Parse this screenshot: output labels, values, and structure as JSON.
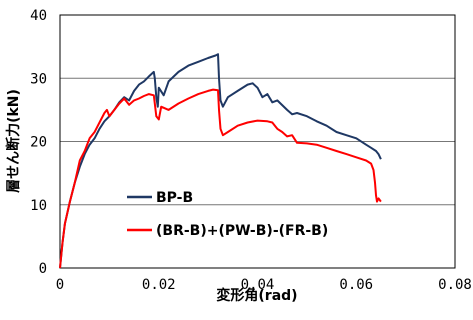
{
  "chart_data": {
    "type": "line",
    "xlabel": "変形角(rad)",
    "ylabel": "層せん断力(kN)",
    "xlim": [
      0,
      0.08
    ],
    "ylim": [
      0,
      40
    ],
    "xticks": [
      0,
      0.02,
      0.04,
      0.06,
      0.08
    ],
    "xtick_labels": [
      "0",
      "0.02",
      "0.04",
      "0.06",
      "0.08"
    ],
    "yticks": [
      0,
      10,
      20,
      30,
      40
    ],
    "ytick_labels": [
      "0",
      "10",
      "20",
      "30",
      "40"
    ],
    "grid": "horizontal",
    "legend_position": "bottom-left",
    "series": [
      {
        "name": "BP-B",
        "color": "#1f3864",
        "points": [
          [
            0,
            0
          ],
          [
            0.0005,
            4
          ],
          [
            0.001,
            7
          ],
          [
            0.002,
            10.5
          ],
          [
            0.003,
            13.5
          ],
          [
            0.004,
            16
          ],
          [
            0.005,
            18
          ],
          [
            0.006,
            19.5
          ],
          [
            0.007,
            20.5
          ],
          [
            0.008,
            22
          ],
          [
            0.009,
            23.2
          ],
          [
            0.01,
            24
          ],
          [
            0.011,
            25
          ],
          [
            0.012,
            26.2
          ],
          [
            0.013,
            27
          ],
          [
            0.014,
            26.5
          ],
          [
            0.015,
            28
          ],
          [
            0.016,
            29
          ],
          [
            0.017,
            29.5
          ],
          [
            0.018,
            30.3
          ],
          [
            0.019,
            31
          ],
          [
            0.0192,
            30
          ],
          [
            0.0195,
            27
          ],
          [
            0.0198,
            25.5
          ],
          [
            0.02,
            28.5
          ],
          [
            0.021,
            27.3
          ],
          [
            0.022,
            29.5
          ],
          [
            0.024,
            31
          ],
          [
            0.026,
            32
          ],
          [
            0.028,
            32.6
          ],
          [
            0.03,
            33.2
          ],
          [
            0.0315,
            33.6
          ],
          [
            0.032,
            33.8
          ],
          [
            0.0322,
            30
          ],
          [
            0.0325,
            26.5
          ],
          [
            0.033,
            25.5
          ],
          [
            0.034,
            27
          ],
          [
            0.036,
            28
          ],
          [
            0.038,
            29
          ],
          [
            0.039,
            29.2
          ],
          [
            0.04,
            28.5
          ],
          [
            0.041,
            27
          ],
          [
            0.042,
            27.5
          ],
          [
            0.043,
            26.2
          ],
          [
            0.044,
            26.5
          ],
          [
            0.046,
            25
          ],
          [
            0.047,
            24.3
          ],
          [
            0.048,
            24.5
          ],
          [
            0.05,
            24
          ],
          [
            0.052,
            23.2
          ],
          [
            0.054,
            22.5
          ],
          [
            0.056,
            21.5
          ],
          [
            0.058,
            21
          ],
          [
            0.06,
            20.5
          ],
          [
            0.062,
            19.5
          ],
          [
            0.063,
            19
          ],
          [
            0.064,
            18.5
          ],
          [
            0.0645,
            18
          ],
          [
            0.065,
            17.2
          ]
        ]
      },
      {
        "name": "(BR-B)+(PW-B)-(FR-B)",
        "color": "#ff0000",
        "points": [
          [
            0,
            0
          ],
          [
            0.0005,
            4
          ],
          [
            0.001,
            7
          ],
          [
            0.002,
            10.5
          ],
          [
            0.003,
            13.5
          ],
          [
            0.004,
            17
          ],
          [
            0.005,
            18.5
          ],
          [
            0.006,
            20.5
          ],
          [
            0.007,
            21.5
          ],
          [
            0.008,
            23
          ],
          [
            0.009,
            24.5
          ],
          [
            0.0095,
            25
          ],
          [
            0.01,
            24
          ],
          [
            0.011,
            25
          ],
          [
            0.012,
            26
          ],
          [
            0.013,
            26.8
          ],
          [
            0.014,
            25.8
          ],
          [
            0.015,
            26.5
          ],
          [
            0.016,
            26.8
          ],
          [
            0.017,
            27.2
          ],
          [
            0.018,
            27.5
          ],
          [
            0.019,
            27.3
          ],
          [
            0.0192,
            26
          ],
          [
            0.0195,
            24
          ],
          [
            0.02,
            23.5
          ],
          [
            0.0205,
            25.5
          ],
          [
            0.022,
            25
          ],
          [
            0.024,
            26
          ],
          [
            0.026,
            26.8
          ],
          [
            0.028,
            27.5
          ],
          [
            0.03,
            28
          ],
          [
            0.031,
            28.2
          ],
          [
            0.032,
            28.1
          ],
          [
            0.0322,
            25
          ],
          [
            0.0325,
            22
          ],
          [
            0.033,
            21
          ],
          [
            0.034,
            21.5
          ],
          [
            0.036,
            22.5
          ],
          [
            0.038,
            23
          ],
          [
            0.04,
            23.3
          ],
          [
            0.042,
            23.2
          ],
          [
            0.043,
            23
          ],
          [
            0.044,
            22
          ],
          [
            0.045,
            21.5
          ],
          [
            0.046,
            20.8
          ],
          [
            0.047,
            21
          ],
          [
            0.048,
            19.8
          ],
          [
            0.05,
            19.7
          ],
          [
            0.052,
            19.5
          ],
          [
            0.054,
            19
          ],
          [
            0.056,
            18.5
          ],
          [
            0.058,
            18
          ],
          [
            0.06,
            17.5
          ],
          [
            0.062,
            17
          ],
          [
            0.063,
            16.5
          ],
          [
            0.0635,
            15.5
          ],
          [
            0.0638,
            13.5
          ],
          [
            0.064,
            11.5
          ],
          [
            0.0642,
            10.5
          ],
          [
            0.0645,
            11
          ],
          [
            0.065,
            10.5
          ]
        ]
      }
    ]
  }
}
